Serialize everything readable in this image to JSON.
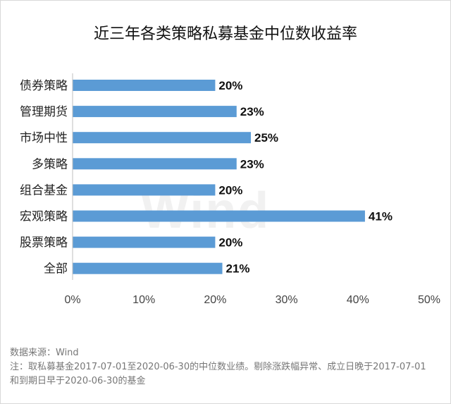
{
  "title": "近三年各类策略私募基金中位数收益率",
  "watermark": "Wind",
  "source": "数据来源：Wind",
  "note": "注：取私募基金2017-07-01至2020-06-30的中位数业绩。剔除涨跌幅异常、成立日晚于2017-07-01和到期日早于2020-06-30的基金",
  "colors": {
    "bar": "#5b9bd5",
    "axis": "#bfbfbf"
  },
  "chart_data": {
    "type": "bar",
    "orientation": "horizontal",
    "categories": [
      "债券策略",
      "管理期货",
      "市场中性",
      "多策略",
      "组合基金",
      "宏观策略",
      "股票策略",
      "全部"
    ],
    "values": [
      20,
      23,
      25,
      23,
      20,
      41,
      20,
      21
    ],
    "value_labels": [
      "20%",
      "23%",
      "25%",
      "23%",
      "20%",
      "41%",
      "20%",
      "21%"
    ],
    "xlim": [
      0,
      50
    ],
    "xticks": [
      0,
      10,
      20,
      30,
      40,
      50
    ],
    "xtick_labels": [
      "0%",
      "10%",
      "20%",
      "30%",
      "40%",
      "50%"
    ],
    "title": "近三年各类策略私募基金中位数收益率",
    "xlabel": "",
    "ylabel": "",
    "grid": false
  }
}
